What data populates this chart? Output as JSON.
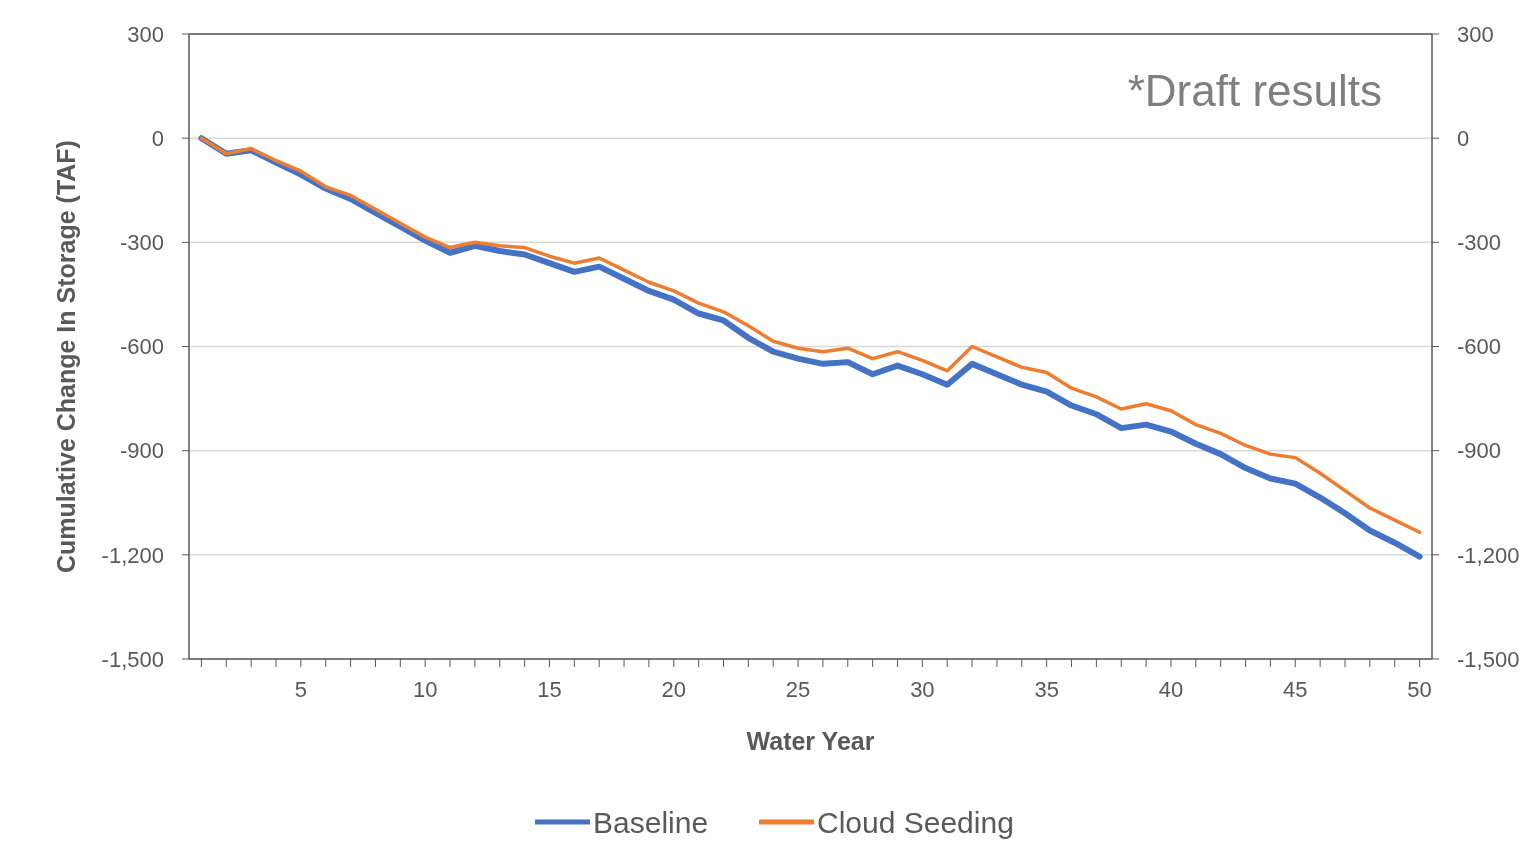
{
  "chart_data": {
    "type": "line",
    "xlabel": "Water Year",
    "ylabel": "Cumulative Change In Storage (TAF)",
    "annotations": [
      "*Draft results"
    ],
    "x": [
      1,
      2,
      3,
      4,
      5,
      6,
      7,
      8,
      9,
      10,
      11,
      12,
      13,
      14,
      15,
      16,
      17,
      18,
      19,
      20,
      21,
      22,
      23,
      24,
      25,
      26,
      27,
      28,
      29,
      30,
      31,
      32,
      33,
      34,
      35,
      36,
      37,
      38,
      39,
      40,
      41,
      42,
      43,
      44,
      45,
      46,
      47,
      48,
      49,
      50
    ],
    "xlim": [
      0.5,
      50.5
    ],
    "xticks": [
      {
        "value": 1,
        "label": null
      },
      {
        "value": 2,
        "label": null
      },
      {
        "value": 3,
        "label": null
      },
      {
        "value": 4,
        "label": null
      },
      5,
      {
        "value": 6,
        "label": null
      },
      {
        "value": 7,
        "label": null
      },
      {
        "value": 8,
        "label": null
      },
      {
        "value": 9,
        "label": null
      },
      10,
      {
        "value": 11,
        "label": null
      },
      {
        "value": 12,
        "label": null
      },
      {
        "value": 13,
        "label": null
      },
      {
        "value": 14,
        "label": null
      },
      15,
      {
        "value": 16,
        "label": null
      },
      {
        "value": 17,
        "label": null
      },
      {
        "value": 18,
        "label": null
      },
      {
        "value": 19,
        "label": null
      },
      20,
      {
        "value": 21,
        "label": null
      },
      {
        "value": 22,
        "label": null
      },
      {
        "value": 23,
        "label": null
      },
      {
        "value": 24,
        "label": null
      },
      25,
      {
        "value": 26,
        "label": null
      },
      {
        "value": 27,
        "label": null
      },
      {
        "value": 28,
        "label": null
      },
      {
        "value": 29,
        "label": null
      },
      30,
      {
        "value": 31,
        "label": null
      },
      {
        "value": 32,
        "label": null
      },
      {
        "value": 33,
        "label": null
      },
      {
        "value": 34,
        "label": null
      },
      35,
      {
        "value": 36,
        "label": null
      },
      {
        "value": 37,
        "label": null
      },
      {
        "value": 38,
        "label": null
      },
      {
        "value": 39,
        "label": null
      },
      40,
      {
        "value": 41,
        "label": null
      },
      {
        "value": 42,
        "label": null
      },
      {
        "value": 43,
        "label": null
      },
      {
        "value": 44,
        "label": null
      },
      45,
      {
        "value": 46,
        "label": null
      },
      {
        "value": 47,
        "label": null
      },
      {
        "value": 48,
        "label": null
      },
      {
        "value": 49,
        "label": null
      },
      50
    ],
    "ylim": [
      -1500,
      300
    ],
    "yticks": [
      300,
      0,
      -300,
      -600,
      -900,
      {
        "value": -1200,
        "label": "-1,200"
      },
      {
        "value": -1500,
        "label": "-1,500"
      }
    ],
    "y2lim": [
      -1500,
      300
    ],
    "y2ticks": [
      300,
      0,
      -300,
      -600,
      -900,
      {
        "value": -1200,
        "label": "-1,200"
      },
      {
        "value": -1500,
        "label": "-1,500"
      }
    ],
    "grid": "y",
    "legend": "bottom",
    "marker": "none",
    "line_style": "solid",
    "series": [
      {
        "name": "Baseline",
        "color": "#4472c4",
        "values": [
          0,
          -45,
          -35,
          -70,
          -105,
          -145,
          -175,
          -215,
          -255,
          -295,
          -330,
          -310,
          -325,
          -335,
          -360,
          -385,
          -370,
          -405,
          -440,
          -465,
          -505,
          -525,
          -575,
          -615,
          -635,
          -650,
          -645,
          -680,
          -655,
          -680,
          -710,
          -650,
          -680,
          -710,
          -730,
          -770,
          -795,
          -835,
          -825,
          -845,
          -880,
          -910,
          -950,
          -980,
          -995,
          -1035,
          -1080,
          -1130,
          -1165,
          -1205
        ]
      },
      {
        "name": "Cloud Seeding",
        "color": "#ed7d31",
        "values": [
          0,
          -45,
          -30,
          -65,
          -95,
          -140,
          -165,
          -205,
          -245,
          -285,
          -315,
          -300,
          -310,
          -315,
          -340,
          -360,
          -345,
          -380,
          -415,
          -440,
          -475,
          -500,
          -540,
          -585,
          -605,
          -615,
          -605,
          -635,
          -615,
          -640,
          -670,
          -600,
          -630,
          -660,
          -675,
          -720,
          -745,
          -780,
          -765,
          -785,
          -825,
          -850,
          -885,
          -910,
          -920,
          -965,
          -1015,
          -1065,
          -1100,
          -1135
        ]
      }
    ]
  }
}
